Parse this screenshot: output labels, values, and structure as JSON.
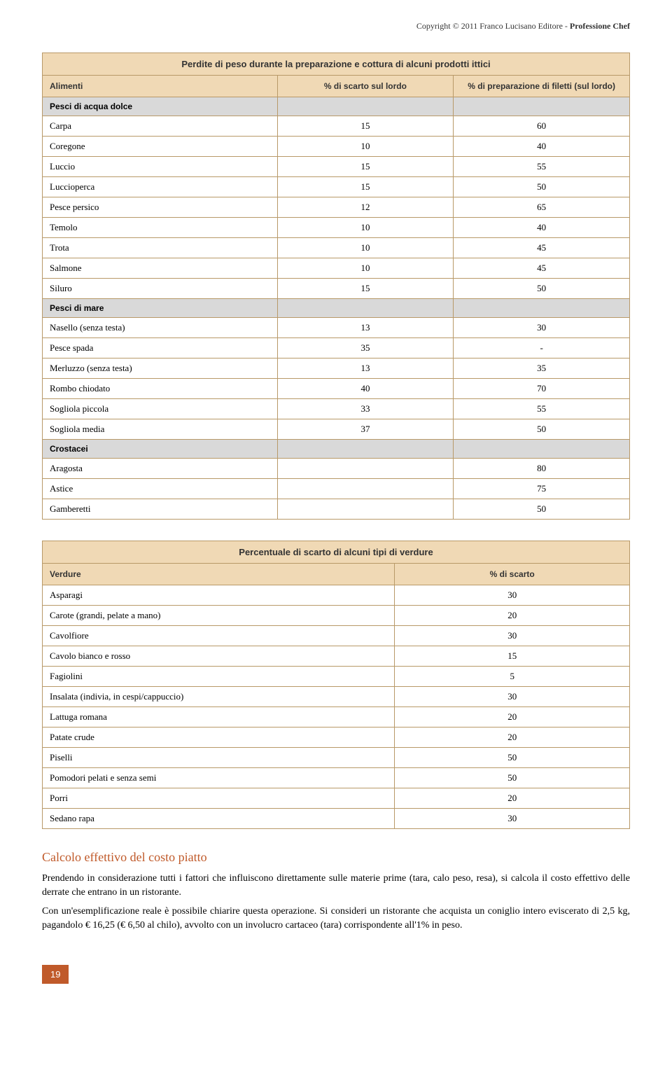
{
  "copyright": {
    "prefix": "Copyright © 2011 Franco Lucisano Editore - ",
    "bold": "Professione Chef"
  },
  "table1": {
    "title": "Perdite di peso durante la preparazione e cottura di alcuni prodotti ittici",
    "headers": [
      "Alimenti",
      "% di scarto sul lordo",
      "% di preparazione di filetti (sul lordo)"
    ],
    "sections": [
      {
        "name": "Pesci di acqua dolce",
        "rows": [
          {
            "label": "Carpa",
            "v1": "15",
            "v2": "60"
          },
          {
            "label": "Coregone",
            "v1": "10",
            "v2": "40"
          },
          {
            "label": "Luccio",
            "v1": "15",
            "v2": "55"
          },
          {
            "label": "Luccioperca",
            "v1": "15",
            "v2": "50"
          },
          {
            "label": "Pesce persico",
            "v1": "12",
            "v2": "65"
          },
          {
            "label": "Temolo",
            "v1": "10",
            "v2": "40"
          },
          {
            "label": "Trota",
            "v1": "10",
            "v2": "45"
          },
          {
            "label": "Salmone",
            "v1": "10",
            "v2": "45"
          },
          {
            "label": "Siluro",
            "v1": "15",
            "v2": "50"
          }
        ]
      },
      {
        "name": "Pesci di mare",
        "rows": [
          {
            "label": "Nasello (senza testa)",
            "v1": "13",
            "v2": "30"
          },
          {
            "label": "Pesce spada",
            "v1": "35",
            "v2": "-"
          },
          {
            "label": "Merluzzo (senza testa)",
            "v1": "13",
            "v2": "35"
          },
          {
            "label": "Rombo chiodato",
            "v1": "40",
            "v2": "70"
          },
          {
            "label": "Sogliola piccola",
            "v1": "33",
            "v2": "55"
          },
          {
            "label": "Sogliola media",
            "v1": "37",
            "v2": "50"
          }
        ]
      },
      {
        "name": "Crostacei",
        "rows": [
          {
            "label": "Aragosta",
            "v1": "",
            "v2": "80"
          },
          {
            "label": "Astice",
            "v1": "",
            "v2": "75"
          },
          {
            "label": "Gamberetti",
            "v1": "",
            "v2": "50"
          }
        ]
      }
    ]
  },
  "table2": {
    "title": "Percentuale di scarto di alcuni tipi di verdure",
    "headers": [
      "Verdure",
      "% di scarto"
    ],
    "rows": [
      {
        "label": "Asparagi",
        "v": "30"
      },
      {
        "label": "Carote (grandi, pelate a mano)",
        "v": "20"
      },
      {
        "label": "Cavolfiore",
        "v": "30"
      },
      {
        "label": "Cavolo bianco e rosso",
        "v": "15"
      },
      {
        "label": "Fagiolini",
        "v": "5"
      },
      {
        "label": "Insalata (indivia, in cespi/cappuccio)",
        "v": "30"
      },
      {
        "label": "Lattuga romana",
        "v": "20"
      },
      {
        "label": "Patate crude",
        "v": "20"
      },
      {
        "label": "Piselli",
        "v": "50"
      },
      {
        "label": "Pomodori pelati e senza semi",
        "v": "50"
      },
      {
        "label": "Porri",
        "v": "20"
      },
      {
        "label": "Sedano rapa",
        "v": "30"
      }
    ]
  },
  "section_title": "Calcolo effettivo del costo piatto",
  "para1": "Prendendo in considerazione tutti i fattori che influiscono direttamente sulle materie prime (tara, calo peso, resa), si calcola il costo effettivo delle derrate che entrano in un ristorante.",
  "para2": "Con un'esemplificazione reale è possibile chiarire questa operazione. Si consideri un ristorante che acquista un coniglio intero eviscerato di 2,5 kg, pagandolo € 16,25 (€ 6,50 al chilo), avvolto con un involucro cartaceo (tara) corrispondente all'1% in peso.",
  "page_number": "19",
  "colors": {
    "header_bg": "#f0d9b5",
    "border": "#b89968",
    "section_bg": "#d9d9d9",
    "accent": "#c05a2a"
  }
}
